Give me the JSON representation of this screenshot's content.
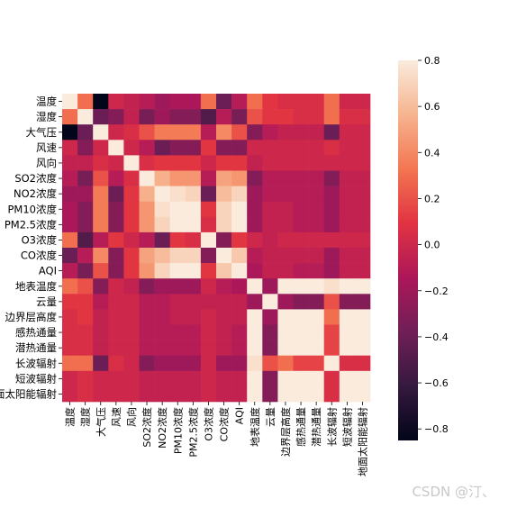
{
  "chart_data": {
    "type": "heatmap",
    "title": "",
    "xlabel": "",
    "ylabel": "",
    "labels": [
      "温度",
      "湿度",
      "大气压",
      "风速",
      "风向",
      "SO2浓度",
      "NO2浓度",
      "PM10浓度",
      "PM2.5浓度",
      "O3浓度",
      "CO浓度",
      "AQI",
      "地表温度",
      "云量",
      "边界层高度",
      "感热通量",
      "潜热通量",
      "长波辐射",
      "短波辐射",
      "地面太阳能辐射"
    ],
    "values": [
      [
        1.0,
        0.3,
        -0.85,
        0.0,
        -0.05,
        -0.1,
        -0.2,
        -0.15,
        -0.15,
        0.3,
        -0.4,
        -0.1,
        0.3,
        0.1,
        0.05,
        0.05,
        0.05,
        0.3,
        0.0,
        0.0
      ],
      [
        0.3,
        1.0,
        -0.4,
        -0.3,
        -0.05,
        -0.35,
        -0.2,
        -0.3,
        -0.3,
        -0.5,
        -0.1,
        -0.35,
        0.2,
        0.1,
        0.1,
        0.05,
        0.05,
        0.3,
        0.05,
        0.05
      ],
      [
        -0.85,
        -0.4,
        1.0,
        0.0,
        0.05,
        0.2,
        0.35,
        0.35,
        0.35,
        -0.1,
        0.4,
        0.2,
        -0.3,
        -0.1,
        -0.05,
        -0.05,
        -0.05,
        -0.4,
        0.0,
        0.0
      ],
      [
        0.0,
        -0.3,
        0.0,
        1.0,
        0.0,
        -0.1,
        -0.4,
        -0.3,
        -0.3,
        0.1,
        -0.3,
        -0.3,
        0.0,
        0.0,
        0.0,
        0.0,
        0.0,
        0.05,
        0.0,
        0.0
      ],
      [
        -0.05,
        -0.05,
        0.05,
        0.0,
        1.0,
        0.05,
        0.1,
        0.1,
        0.1,
        0.0,
        0.1,
        0.1,
        -0.05,
        0.0,
        0.0,
        0.0,
        0.0,
        0.0,
        0.0,
        0.0
      ],
      [
        -0.1,
        -0.35,
        0.2,
        -0.1,
        0.05,
        1.0,
        0.55,
        0.45,
        0.45,
        -0.1,
        0.5,
        0.45,
        -0.3,
        -0.1,
        -0.1,
        -0.1,
        -0.1,
        -0.3,
        -0.05,
        -0.05
      ],
      [
        -0.2,
        -0.2,
        0.35,
        -0.4,
        0.1,
        0.55,
        1.0,
        0.75,
        0.7,
        -0.4,
        0.6,
        0.7,
        -0.2,
        -0.1,
        -0.1,
        -0.1,
        -0.1,
        -0.2,
        -0.05,
        -0.05
      ],
      [
        -0.15,
        -0.3,
        0.35,
        -0.3,
        0.1,
        0.45,
        0.75,
        1.0,
        0.95,
        0.1,
        0.7,
        0.9,
        -0.2,
        -0.05,
        -0.05,
        -0.1,
        -0.1,
        -0.2,
        -0.05,
        -0.05
      ],
      [
        -0.15,
        -0.3,
        0.35,
        -0.3,
        0.1,
        0.45,
        0.7,
        0.95,
        1.0,
        0.05,
        0.7,
        0.95,
        -0.2,
        -0.05,
        -0.05,
        -0.1,
        -0.1,
        -0.2,
        -0.05,
        -0.05
      ],
      [
        0.3,
        -0.5,
        -0.1,
        0.1,
        0.0,
        -0.1,
        -0.4,
        0.1,
        0.05,
        1.0,
        -0.3,
        0.1,
        0.0,
        -0.05,
        0.0,
        0.0,
        0.0,
        0.0,
        0.0,
        0.0
      ],
      [
        -0.4,
        -0.1,
        0.4,
        -0.3,
        0.1,
        0.5,
        0.6,
        0.7,
        0.7,
        -0.3,
        1.0,
        0.65,
        -0.1,
        -0.05,
        -0.05,
        -0.05,
        -0.05,
        -0.2,
        -0.05,
        -0.05
      ],
      [
        -0.1,
        -0.35,
        0.2,
        -0.3,
        0.1,
        0.45,
        0.7,
        0.9,
        0.95,
        0.1,
        0.65,
        1.0,
        -0.15,
        -0.05,
        -0.05,
        -0.1,
        -0.1,
        -0.2,
        -0.05,
        -0.05
      ],
      [
        0.3,
        0.2,
        -0.3,
        0.0,
        -0.05,
        -0.3,
        -0.2,
        -0.2,
        -0.2,
        0.0,
        -0.1,
        -0.15,
        1.0,
        -0.2,
        0.85,
        0.9,
        0.9,
        0.75,
        0.85,
        0.85
      ],
      [
        0.1,
        0.1,
        -0.1,
        0.0,
        0.0,
        -0.1,
        -0.1,
        -0.05,
        -0.05,
        -0.05,
        -0.05,
        -0.05,
        -0.2,
        1.0,
        -0.2,
        -0.3,
        -0.3,
        0.2,
        -0.3,
        -0.3
      ],
      [
        0.05,
        0.1,
        -0.05,
        0.0,
        0.0,
        -0.1,
        -0.1,
        -0.05,
        -0.05,
        0.0,
        -0.05,
        -0.05,
        0.85,
        -0.2,
        1.0,
        0.95,
        0.95,
        0.3,
        0.9,
        0.9
      ],
      [
        0.05,
        0.05,
        -0.05,
        0.0,
        0.0,
        -0.1,
        -0.1,
        -0.1,
        -0.1,
        0.0,
        -0.05,
        -0.1,
        0.9,
        -0.3,
        0.95,
        1.0,
        0.98,
        0.15,
        0.95,
        0.95
      ],
      [
        0.05,
        0.05,
        -0.05,
        0.0,
        0.0,
        -0.1,
        -0.1,
        -0.1,
        -0.1,
        0.0,
        -0.05,
        -0.1,
        0.9,
        -0.3,
        0.95,
        0.98,
        1.0,
        0.15,
        0.95,
        0.95
      ],
      [
        0.3,
        0.3,
        -0.4,
        0.05,
        0.0,
        -0.3,
        -0.2,
        -0.2,
        -0.2,
        0.0,
        -0.2,
        -0.2,
        0.75,
        0.2,
        0.3,
        0.15,
        0.15,
        1.0,
        0.05,
        0.05
      ],
      [
        0.0,
        0.05,
        0.0,
        0.0,
        0.0,
        -0.05,
        -0.05,
        -0.05,
        -0.05,
        0.0,
        -0.05,
        -0.05,
        0.85,
        -0.3,
        0.9,
        0.95,
        0.95,
        0.05,
        1.0,
        1.0
      ],
      [
        0.0,
        0.05,
        0.0,
        0.0,
        0.0,
        -0.05,
        -0.05,
        -0.05,
        -0.05,
        0.0,
        -0.05,
        -0.05,
        0.85,
        -0.3,
        0.9,
        0.95,
        0.95,
        0.05,
        1.0,
        1.0
      ]
    ],
    "colorbar": {
      "vmin": -0.85,
      "vmax": 0.8,
      "ticks": [
        0.8,
        0.6,
        0.4,
        0.2,
        0.0,
        -0.2,
        -0.4,
        -0.6,
        -0.8
      ],
      "tick_labels": [
        "0.8",
        "0.6",
        "0.4",
        "0.2",
        "0.0",
        "−0.2",
        "−0.4",
        "−0.6",
        "−0.8"
      ],
      "colormap": "rocket",
      "colormap_stops": [
        "#03051a",
        "#35193e",
        "#701f57",
        "#ad1759",
        "#e13342",
        "#f37651",
        "#f6b48f",
        "#faebdd"
      ]
    },
    "grid": false,
    "legend": "colorbar-right"
  },
  "watermark": "CSDN @汀、"
}
